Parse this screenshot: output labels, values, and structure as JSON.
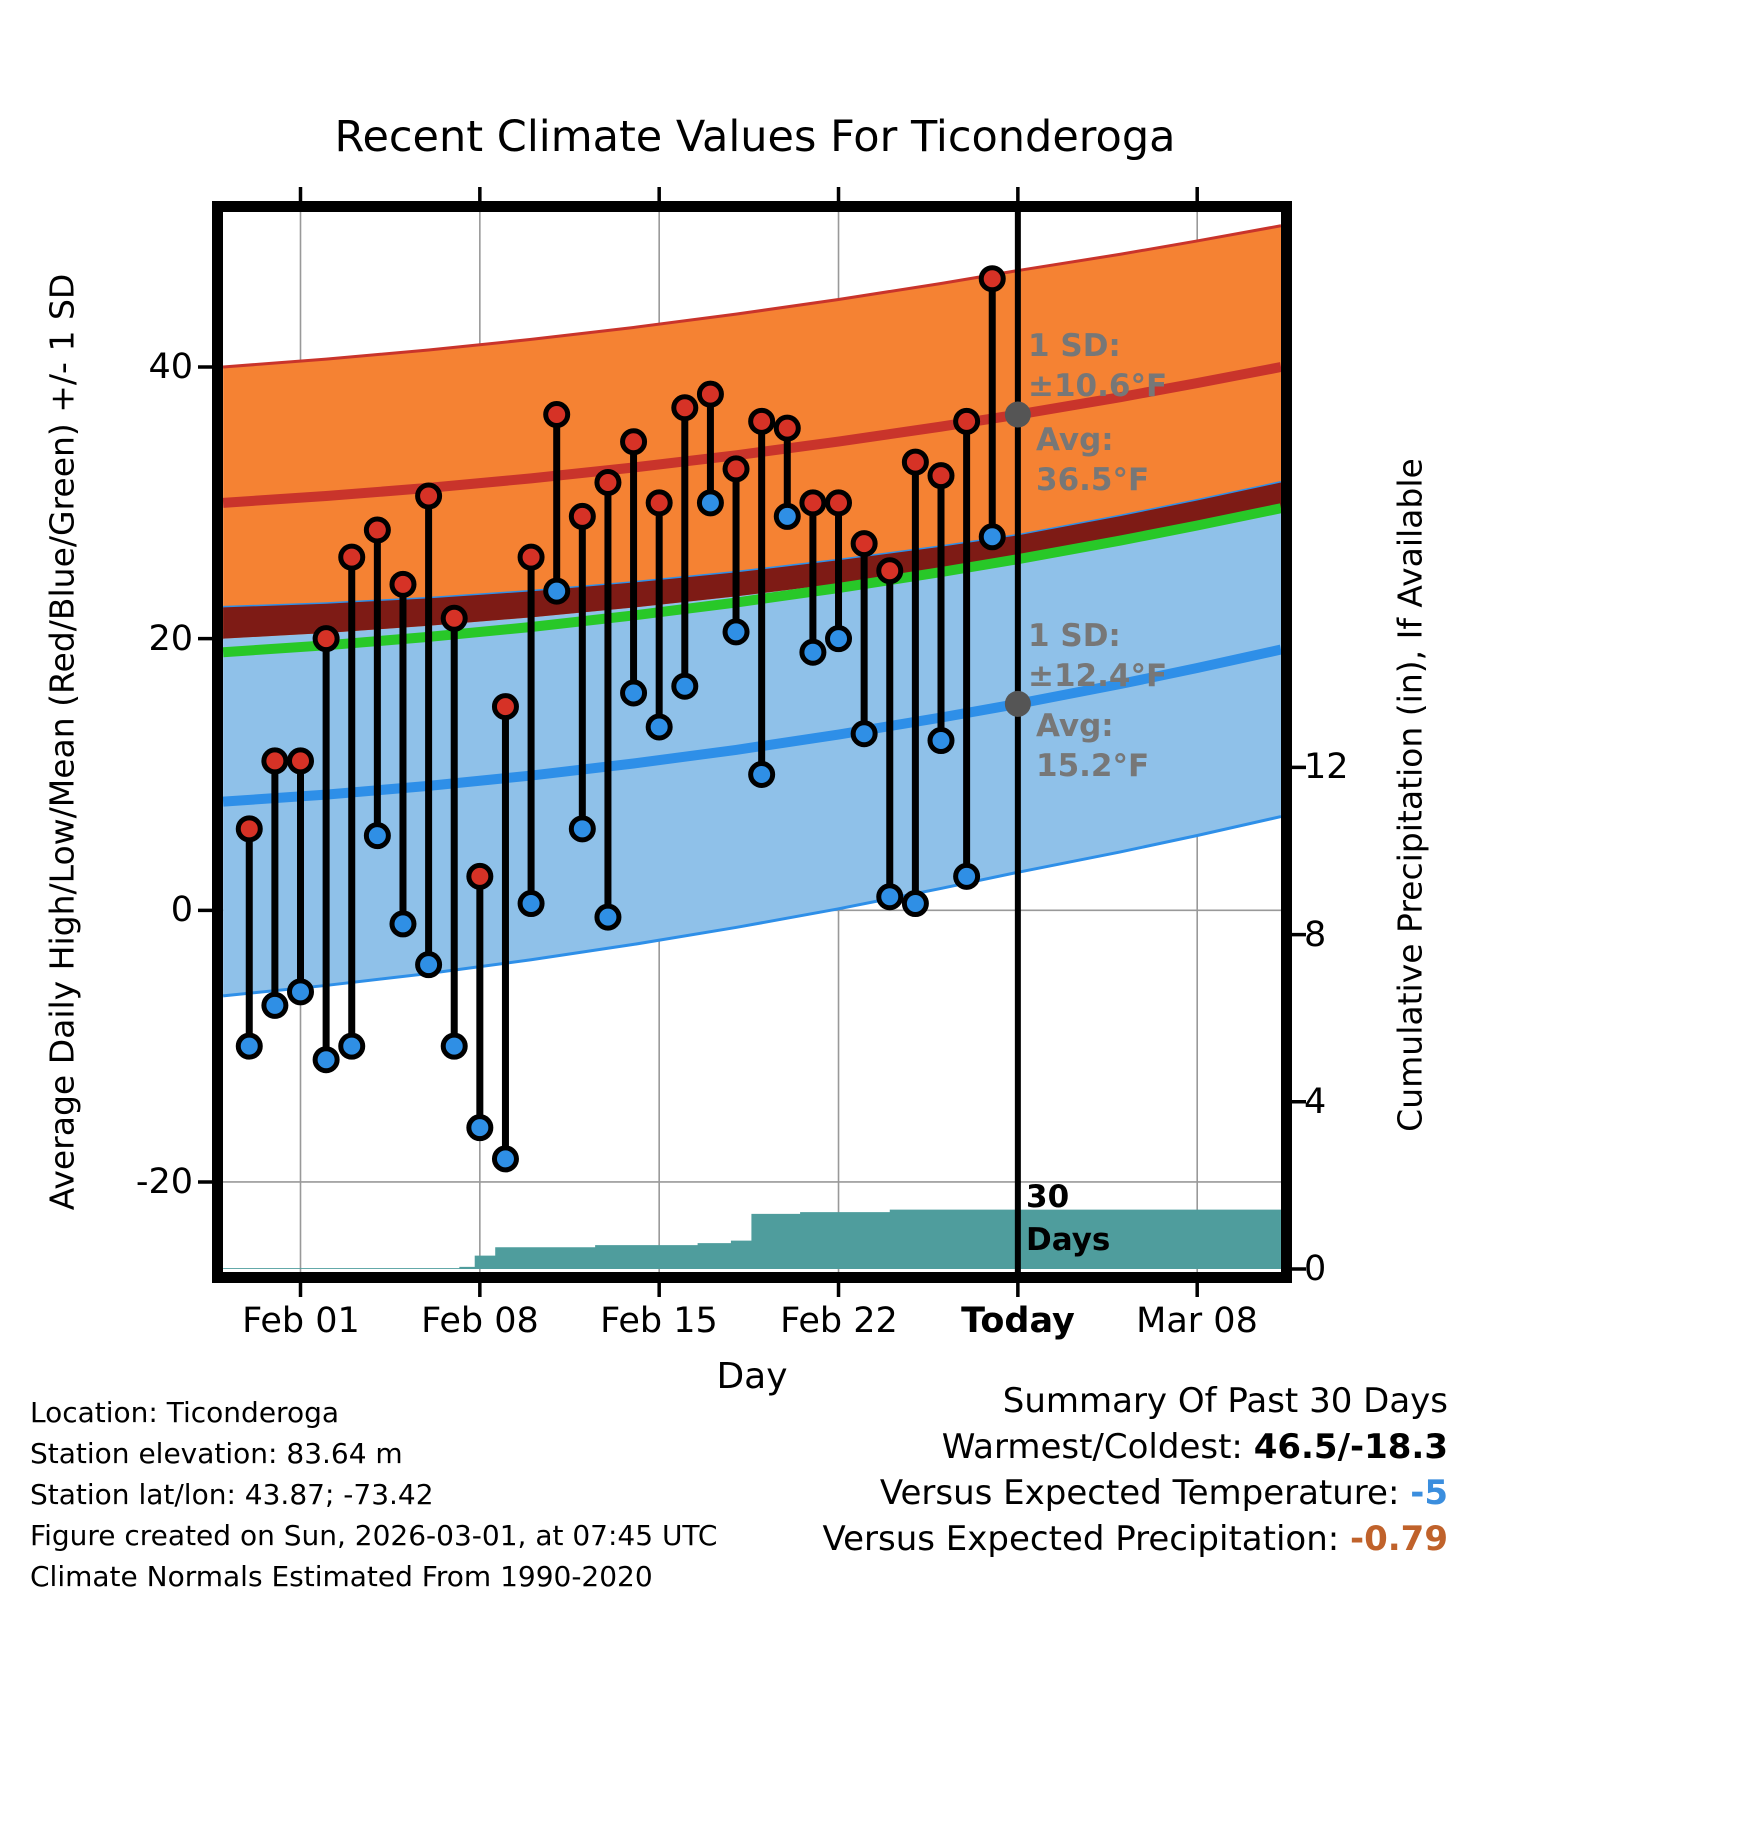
{
  "title": "Recent Climate Values For Ticonderoga",
  "axes": {
    "x_label": "Day",
    "x_ticks": [
      "Feb 01",
      "Feb 08",
      "Feb 15",
      "Feb 22",
      "Today",
      "Mar 08"
    ],
    "y_left_label": "Average Daily High/Low/Mean (Red/Blue/Green) +/- 1 SD",
    "y_left_ticks": [
      "40",
      "20",
      "0",
      "-20"
    ],
    "y_right_label": "Cumulative Precipitation (in), If Available",
    "y_right_ticks": [
      "12",
      "8",
      "4",
      "0"
    ]
  },
  "annotations": {
    "high_sd_label": "1 SD:",
    "high_sd_value": "±10.6°F",
    "high_avg_label": "Avg:",
    "high_avg_value": "36.5°F",
    "low_sd_label": "1 SD:",
    "low_sd_value": "±12.4°F",
    "low_avg_label": "Avg:",
    "low_avg_value": "15.2°F",
    "precip_label_line1": "30",
    "precip_label_line2": "Days"
  },
  "footer": {
    "location": "Location: Ticonderoga",
    "elevation": "Station elevation: 83.64 m",
    "latlon": "Station lat/lon: 43.87; -73.42",
    "created": "Figure created on Sun, 2026-03-01, at 07:45 UTC",
    "normals": "Climate Normals Estimated From 1990-2020"
  },
  "summary": {
    "title": "Summary Of Past 30 Days",
    "warmest_coldest_label": "Warmest/Coldest: ",
    "warmest_coldest_value": "46.5/-18.3",
    "vs_temp_label": "Versus Expected Temperature: ",
    "vs_temp_value": "-5",
    "vs_precip_label": "Versus Expected Precipitation: ",
    "vs_precip_value": "-0.79"
  },
  "colors": {
    "high_band": "#F58233",
    "high_line": "#C9342B",
    "overlap_band": "#7E1B15",
    "mean_line": "#28C828",
    "low_band": "#8FC1E9",
    "low_line": "#2E8FE8",
    "high_dot": "#D63226",
    "low_dot": "#2F8FE5",
    "precip_fill": "#4F9D9D",
    "annotation_gray": "#777777",
    "today_marker": "#555555",
    "vs_temp_value_color": "#3B8EDE",
    "vs_precip_value_color": "#C0622B"
  },
  "chart_data": {
    "type": "line",
    "title": "Recent Climate Values For Ticonderoga",
    "description": "Daily observed high (red) / low (blue) temperatures as stems vs climate-normal bands (avg high ±1 SD orange, avg low ±1 SD light blue, mean green), plus cumulative precipitation (teal, right axis).",
    "x_axis": {
      "label": "Day",
      "tick_days": [
        1,
        8,
        15,
        22,
        29,
        36
      ],
      "tick_labels": [
        "Feb 01",
        "Feb 08",
        "Feb 15",
        "Feb 22",
        "Today",
        "Mar 08"
      ],
      "range_days": [
        -2.02,
        39.27
      ]
    },
    "y_temp": {
      "label": "Average Daily High/Low/Mean (Red/Blue/Green) +/- 1 SD",
      "ticks": [
        40,
        20,
        0,
        -20
      ],
      "range": [
        -26.6,
        51.4
      ],
      "units": "°F"
    },
    "y_precip": {
      "label": "Cumulative Precipitation (in), If Available",
      "ticks": [
        12,
        8,
        4,
        0
      ],
      "range": [
        0,
        25.3
      ],
      "units": "in"
    },
    "today_day": 29,
    "today": {
      "high_avg": 36.5,
      "high_sd": 10.6,
      "low_avg": 15.2,
      "low_sd": 12.4
    },
    "normals": {
      "days": [
        -2.02,
        2,
        6,
        10,
        14,
        18,
        22,
        26,
        29,
        33,
        36,
        39.27
      ],
      "high_avg": [
        30.0,
        30.5,
        31.1,
        31.8,
        32.6,
        33.5,
        34.51,
        35.61,
        36.5,
        37.78,
        38.82,
        40.0
      ],
      "high_sd": [
        10.0,
        10.08,
        10.15,
        10.23,
        10.31,
        10.39,
        10.46,
        10.54,
        10.6,
        10.52,
        10.46,
        10.4
      ],
      "low_avg": [
        8.0,
        8.52,
        9.16,
        9.92,
        10.81,
        11.81,
        12.94,
        14.19,
        15.2,
        16.66,
        17.84,
        19.2
      ],
      "low_sd": [
        14.3,
        14.05,
        13.81,
        13.56,
        13.32,
        13.07,
        12.83,
        12.58,
        12.4,
        12.36,
        12.33,
        12.3
      ],
      "mean": [
        19.0,
        19.51,
        20.13,
        20.86,
        21.71,
        22.66,
        23.73,
        24.9,
        25.85,
        27.22,
        28.33,
        29.6
      ]
    },
    "daily": [
      {
        "day": -1,
        "high": 6,
        "low": -10
      },
      {
        "day": 0,
        "high": 11,
        "low": -7
      },
      {
        "day": 1,
        "high": 11,
        "low": -6
      },
      {
        "day": 2,
        "high": 20,
        "low": -11
      },
      {
        "day": 3,
        "high": 26,
        "low": -10
      },
      {
        "day": 4,
        "high": 28,
        "low": 5.5
      },
      {
        "day": 5,
        "high": 24,
        "low": -1
      },
      {
        "day": 6,
        "high": 30.5,
        "low": -4
      },
      {
        "day": 7,
        "high": 21.5,
        "low": -10
      },
      {
        "day": 8,
        "high": 2.5,
        "low": -16
      },
      {
        "day": 9,
        "high": 15,
        "low": -18.3
      },
      {
        "day": 10,
        "high": 26,
        "low": 0.5
      },
      {
        "day": 11,
        "high": 36.5,
        "low": 23.5
      },
      {
        "day": 12,
        "high": 29,
        "low": 6
      },
      {
        "day": 13,
        "high": 31.5,
        "low": -0.5
      },
      {
        "day": 14,
        "high": 34.5,
        "low": 16
      },
      {
        "day": 15,
        "high": 30,
        "low": 13.5
      },
      {
        "day": 16,
        "high": 37,
        "low": 16.5
      },
      {
        "day": 17,
        "high": 38,
        "low": 30
      },
      {
        "day": 18,
        "high": 32.5,
        "low": 20.5
      },
      {
        "day": 19,
        "high": 36,
        "low": 10
      },
      {
        "day": 20,
        "high": 35.5,
        "low": 29
      },
      {
        "day": 21,
        "high": 30,
        "low": 19
      },
      {
        "day": 22,
        "high": 30,
        "low": 20
      },
      {
        "day": 23,
        "high": 27,
        "low": 13
      },
      {
        "day": 24,
        "high": 25,
        "low": 1
      },
      {
        "day": 25,
        "high": 33,
        "low": 0.5
      },
      {
        "day": 26,
        "high": 32,
        "low": 12.5
      },
      {
        "day": 27,
        "high": 36,
        "low": 2.5
      },
      {
        "day": 28,
        "high": 46.5,
        "low": 27.5
      }
    ],
    "precip_cumulative": [
      {
        "day": -2.02,
        "value": 0.02
      },
      {
        "day": 7.2,
        "value": 0.05
      },
      {
        "day": 7.8,
        "value": 0.32
      },
      {
        "day": 8.6,
        "value": 0.52
      },
      {
        "day": 12.5,
        "value": 0.57
      },
      {
        "day": 16.5,
        "value": 0.62
      },
      {
        "day": 17.8,
        "value": 0.68
      },
      {
        "day": 18.6,
        "value": 1.32
      },
      {
        "day": 20.5,
        "value": 1.36
      },
      {
        "day": 24,
        "value": 1.42
      },
      {
        "day": 39.27,
        "value": 1.42
      }
    ],
    "summary": {
      "warmest": 46.5,
      "coldest": -18.3,
      "vs_expected_temperature": -5,
      "vs_expected_precipitation": -0.79
    }
  }
}
